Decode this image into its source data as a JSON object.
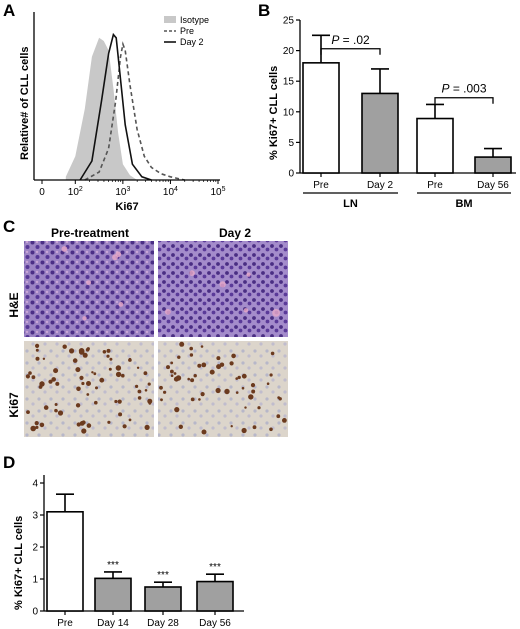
{
  "panels": {
    "A": "A",
    "B": "B",
    "C": "C",
    "D": "D"
  },
  "colors": {
    "white_bar": "#ffffff",
    "gray_bar": "#a0a0a0",
    "isotype_fill": "#c8c8c8",
    "he_tissue": "#7d5aa6",
    "ki67_bg": "#ddd6cc",
    "ki67_stain": "#6b3a1e"
  },
  "chart_data": [
    {
      "id": "A",
      "type": "line",
      "xlabel": "Ki67",
      "ylabel": "Relative# of CLL cells",
      "xscale": "log",
      "xlim": [
        0,
        100000
      ],
      "ticks": [
        "0",
        "10^2",
        "10^3",
        "10^4",
        "10^5"
      ],
      "legend": [
        "Isotype",
        "Pre",
        "Day 2"
      ],
      "legend_position": "top-right",
      "series": [
        {
          "name": "Isotype",
          "style": "filled",
          "x": [
            1.8,
            2.0,
            2.2,
            2.35,
            2.5,
            2.6,
            2.7,
            2.8,
            2.9,
            3.0,
            3.15,
            3.3
          ],
          "y": [
            0.02,
            0.15,
            0.45,
            0.78,
            0.9,
            0.88,
            0.82,
            0.58,
            0.3,
            0.1,
            0.03,
            0
          ]
        },
        {
          "name": "Pre",
          "style": "dashed",
          "x": [
            2.2,
            2.5,
            2.7,
            2.85,
            2.95,
            3.0,
            3.05,
            3.15,
            3.3,
            3.45,
            3.6,
            3.8,
            4.0,
            4.3
          ],
          "y": [
            0,
            0.05,
            0.2,
            0.5,
            0.78,
            0.86,
            0.82,
            0.6,
            0.32,
            0.15,
            0.08,
            0.04,
            0.02,
            0
          ]
        },
        {
          "name": "Day 2",
          "style": "solid",
          "x": [
            2.1,
            2.35,
            2.55,
            2.7,
            2.8,
            2.86,
            2.93,
            3.05,
            3.2,
            3.4,
            3.6
          ],
          "y": [
            0,
            0.12,
            0.5,
            0.8,
            0.92,
            0.9,
            0.7,
            0.35,
            0.1,
            0.02,
            0
          ]
        }
      ]
    },
    {
      "id": "B",
      "type": "bar",
      "ylabel": "% Ki67+ CLL cells",
      "ylim": [
        0,
        25
      ],
      "yticks": [
        0,
        5,
        10,
        15,
        20,
        25
      ],
      "categories": [
        "Pre",
        "Day 2",
        "Pre",
        "Day 56"
      ],
      "groups": [
        {
          "label": "LN",
          "members": [
            0,
            1
          ]
        },
        {
          "label": "BM",
          "members": [
            2,
            3
          ]
        }
      ],
      "values": [
        18,
        13,
        8.9,
        2.6
      ],
      "errors": [
        4.5,
        4,
        2.3,
        1.4
      ],
      "fill": [
        "white",
        "gray",
        "white",
        "gray"
      ],
      "annotations": [
        {
          "text": "P = .02",
          "between": [
            0,
            1
          ],
          "bracket_y": 20.3
        },
        {
          "text": "P = .003",
          "between": [
            2,
            3
          ],
          "bracket_y": 12.3
        }
      ]
    },
    {
      "id": "C",
      "type": "table",
      "columns": [
        "Pre-treatment",
        "Day 2"
      ],
      "rows": [
        "H&E",
        "Ki67"
      ]
    },
    {
      "id": "D",
      "type": "bar",
      "ylabel": "% Ki67+ CLL cells",
      "ylim": [
        0,
        4
      ],
      "yticks": [
        0,
        1,
        2,
        3,
        4
      ],
      "categories": [
        "Pre",
        "Day 14",
        "Day 28",
        "Day 56"
      ],
      "values": [
        3.1,
        1.02,
        0.75,
        0.92
      ],
      "errors": [
        0.55,
        0.2,
        0.15,
        0.23
      ],
      "fill": [
        "white",
        "gray",
        "gray",
        "gray"
      ],
      "significance": [
        "",
        "***",
        "***",
        "***"
      ]
    }
  ]
}
